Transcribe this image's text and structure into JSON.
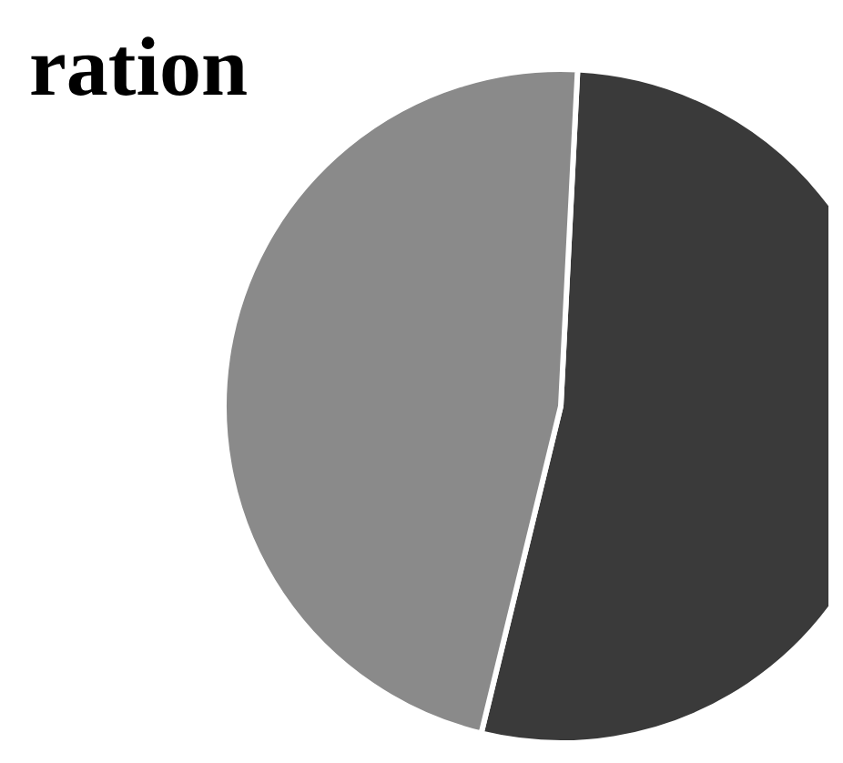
{
  "chart_data": {
    "type": "pie",
    "title": "ration",
    "categories": [
      null,
      null
    ],
    "values": [
      53,
      47
    ],
    "colors": [
      "#3a3a3a",
      "#8a8a8a"
    ]
  }
}
